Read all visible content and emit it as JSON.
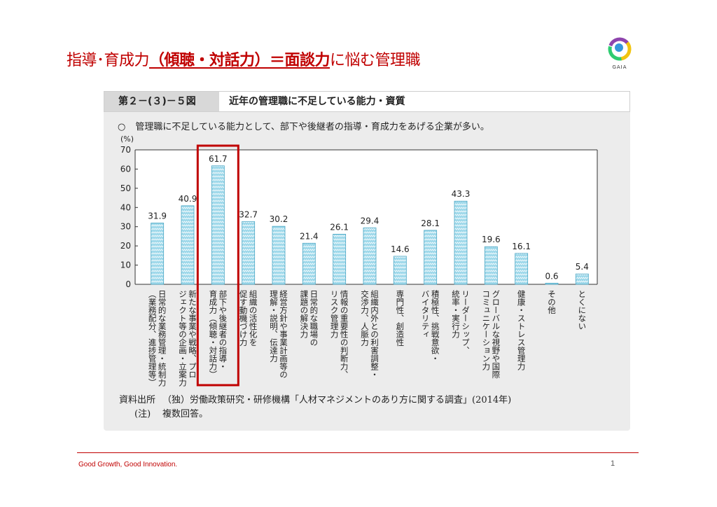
{
  "slide": {
    "title_pre": "指導･育成力",
    "title_highlight": "（傾聴・対話力）＝面談力",
    "title_post": "に悩む管理職",
    "logo_text": "GAIA",
    "footer": "Good Growth,  Good Innovation.",
    "page_number": "1",
    "colors": {
      "accent": "#c00000",
      "bar": "#9ed8ea",
      "highlight_box": "#c00000"
    }
  },
  "figure": {
    "label": "第２－(３)－５図",
    "title": "近年の管理職に不足している能力・資質",
    "subtitle_bullet": "○",
    "subtitle": "管理職に不足している能力として、部下や後継者の指導・育成力をあげる企業が多い。",
    "source_label": "資料出所",
    "source_text": "（独）労働政策研究・研修機構「人材マネジメントのあり方に関する調査」(2014年)",
    "note_label": "(注)",
    "note_text": "複数回答。"
  },
  "chart_data": {
    "type": "bar",
    "ylabel": "(%)",
    "ylim": [
      0,
      70
    ],
    "yticks": [
      0,
      10,
      20,
      30,
      40,
      50,
      60,
      70
    ],
    "grid": false,
    "highlight_index": 2,
    "categories": [
      [
        "日常的な業務管理・統制力",
        "（業務配分、進捗管理等）"
      ],
      [
        "新たな事業や戦略、プロ",
        "ジェクト等の企画・立案力"
      ],
      [
        "部下や後継者の指導・",
        "育成力（傾聴・対話力）"
      ],
      [
        "組織の活性化を",
        "促す動機づけ力"
      ],
      [
        "経営方針や事業計画等の",
        "理解・説明、伝達力"
      ],
      [
        "日常的な職場の",
        "課題の解決力"
      ],
      [
        "情報の重要性の判断力、",
        "リスク管理力"
      ],
      [
        "組織内外との利害調整・",
        "交渉力、人脈力"
      ],
      [
        "専門性、創造性"
      ],
      [
        "積極性、挑戦意欲・",
        "バイタリティ"
      ],
      [
        "リーダーシップ、",
        "統率・実行力"
      ],
      [
        "グローバルな視野や国際",
        "コミュニケーション力"
      ],
      [
        "健康・ストレス管理力"
      ],
      [
        "その他"
      ],
      [
        "とくにない"
      ]
    ],
    "values": [
      31.9,
      40.9,
      61.7,
      32.7,
      30.2,
      21.4,
      26.1,
      29.4,
      14.6,
      28.1,
      43.3,
      19.6,
      16.1,
      0.6,
      5.4
    ],
    "value_labels": [
      "31.9",
      "40.9",
      "61.7",
      "32.7",
      "30.2",
      "21.4",
      "26.1",
      "29.4",
      "14.6",
      "28.1",
      "43.3",
      "19.6",
      "16.1",
      "0.6",
      "5.4"
    ]
  }
}
